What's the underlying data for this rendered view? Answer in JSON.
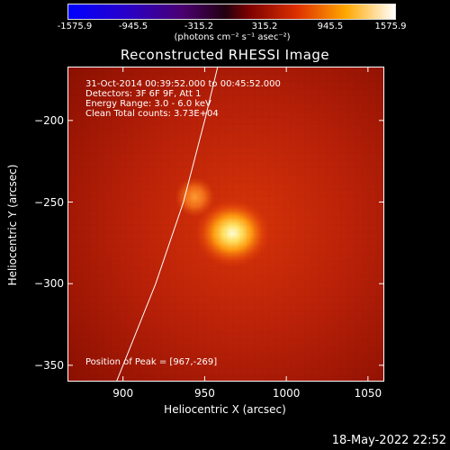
{
  "colorbar": {
    "ticks": [
      "-1575.9",
      "-945.5",
      "-315.2",
      "315.2",
      "945.5",
      "1575.9"
    ],
    "units": "(photons cm⁻² s⁻¹ asec⁻²)",
    "min": -1575.9,
    "max": 1575.9
  },
  "info": {
    "time_range": "31-Oct-2014 00:39:52.000 to 00:45:52.000",
    "detectors": "Detectors: 3F 6F 9F, Att 1",
    "energy": "Energy Range: 3.0 - 6.0 keV",
    "clean": "Clean    Total counts: 3.73E+04",
    "peak": "Position of Peak = [967,-269]"
  },
  "timestamp": "18-May-2022 22:52",
  "chart_data": {
    "type": "heatmap",
    "title": "Reconstructed RHESSI Image",
    "xlabel": "Heliocentric X (arcsec)",
    "ylabel": "Heliocentric Y (arcsec)",
    "xlim": [
      866,
      1060
    ],
    "ylim": [
      -360,
      -167
    ],
    "xticks": [
      "900",
      "950",
      "1000",
      "1050"
    ],
    "yticks": [
      "-200",
      "-250",
      "-300",
      "-350"
    ],
    "xtick_values": [
      900,
      950,
      1000,
      1050
    ],
    "ytick_values": [
      -200,
      -250,
      -300,
      -350
    ],
    "sources": [
      {
        "x": 967,
        "y": -269,
        "relative_intensity": 1.0
      },
      {
        "x": 944,
        "y": -247,
        "relative_intensity": 0.45
      }
    ],
    "limb_curve": [
      [
        896,
        -360
      ],
      [
        920,
        -300
      ],
      [
        937,
        -250
      ],
      [
        950,
        -200
      ],
      [
        958,
        -167
      ]
    ],
    "peak_position": [
      967,
      -269
    ]
  },
  "colors": {
    "background": "#000000",
    "text": "#ffffff",
    "map_low": "#8a0f00",
    "map_mid": "#e0400a",
    "map_high": "#ffffc8"
  }
}
